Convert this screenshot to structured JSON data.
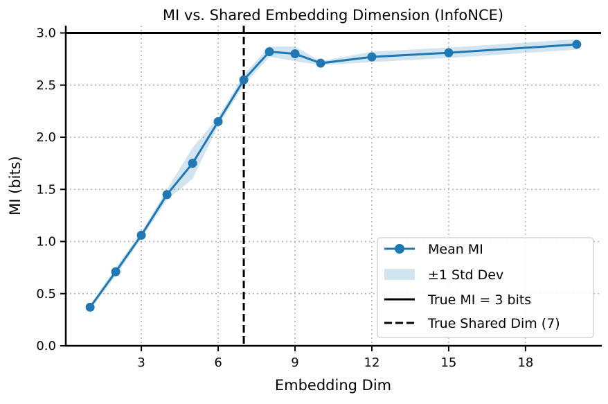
{
  "chart_data": {
    "type": "line",
    "title": "MI vs. Shared Embedding Dimension (InfoNCE)",
    "xlabel": "Embedding Dim",
    "ylabel": "MI (bits)",
    "xlim": [
      0.05,
      20.95
    ],
    "ylim": [
      0,
      3.07
    ],
    "xticks": [
      3,
      6,
      9,
      12,
      15,
      18
    ],
    "yticks": [
      0.0,
      0.5,
      1.0,
      1.5,
      2.0,
      2.5,
      3.0
    ],
    "ytick_labels": [
      "0.0",
      "0.5",
      "1.0",
      "1.5",
      "2.0",
      "2.5",
      "3.0"
    ],
    "grid": true,
    "legend_position": "lower-right",
    "x": [
      1,
      2,
      3,
      4,
      5,
      6,
      7,
      8,
      9,
      10,
      12,
      15,
      20
    ],
    "series": [
      {
        "name": "Mean MI",
        "values": [
          0.37,
          0.71,
          1.06,
          1.45,
          1.75,
          2.15,
          2.55,
          2.82,
          2.8,
          2.71,
          2.77,
          2.81,
          2.89
        ],
        "color": "#1f77b4"
      }
    ],
    "std": [
      0.02,
      0.04,
      0.03,
      0.05,
      0.15,
      0.04,
      0.05,
      0.05,
      0.07,
      0.02,
      0.05,
      0.05,
      0.05
    ],
    "std_label": "±1 Std Dev",
    "hline": {
      "y": 3,
      "label": "True MI = 3 bits",
      "color": "#000000"
    },
    "vline": {
      "x": 7,
      "label": "True Shared Dim (7)",
      "color": "#000000"
    }
  }
}
